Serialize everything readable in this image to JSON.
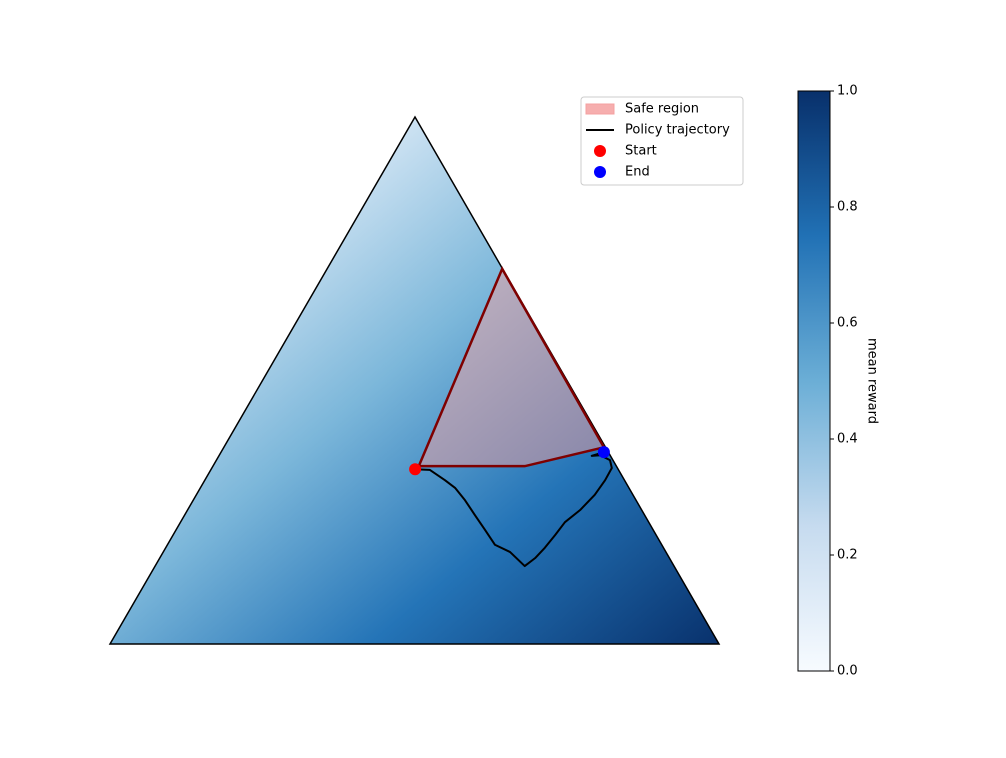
{
  "chart_data": {
    "type": "ternary",
    "safe_region": {
      "name": "Safe region",
      "color": "#f4a0a0",
      "edge_color": "#7f0000",
      "x": [
        0.507,
        0.644,
        0.811,
        0.681
      ],
      "y": [
        0.292,
        0.616,
        0.323,
        0.292
      ]
    },
    "trajectory": {
      "name": "Policy trajectory",
      "color": "#000000",
      "x": [
        0.501,
        0.525,
        0.55,
        0.567,
        0.583,
        0.599,
        0.616,
        0.632,
        0.657,
        0.681,
        0.698,
        0.714,
        0.731,
        0.747,
        0.772,
        0.796,
        0.813,
        0.824,
        0.821,
        0.805,
        0.791,
        0.811
      ],
      "y": [
        0.287,
        0.286,
        0.269,
        0.256,
        0.236,
        0.212,
        0.187,
        0.163,
        0.151,
        0.128,
        0.141,
        0.158,
        0.179,
        0.2,
        0.22,
        0.245,
        0.269,
        0.289,
        0.302,
        0.31,
        0.309,
        0.315
      ]
    },
    "start": {
      "name": "Start",
      "color": "#ff0000",
      "x": 0.501,
      "y": 0.287
    },
    "end": {
      "name": "End",
      "color": "#0000ff",
      "x": 0.811,
      "y": 0.315
    },
    "colorbar": {
      "label": "mean reward",
      "colormap": [
        "#f7fbff",
        "#c6dbef",
        "#6baed6",
        "#2171b5",
        "#08306b"
      ],
      "ylim": [
        0,
        1
      ],
      "yticks": [
        {
          "value": 0,
          "label": "0.0"
        },
        0.2,
        0.4,
        0.6,
        0.8,
        {
          "value": 1,
          "label": "1.0"
        }
      ]
    }
  }
}
